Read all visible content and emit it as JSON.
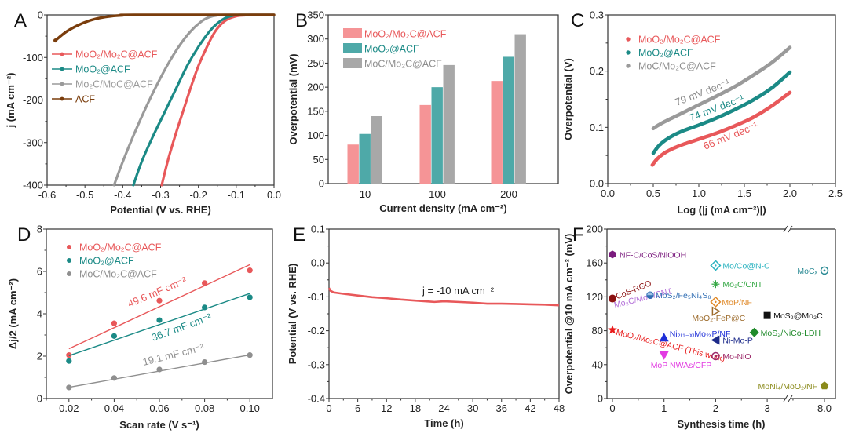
{
  "figure": {
    "panels": [
      "A",
      "B",
      "C",
      "D",
      "E",
      "F"
    ]
  },
  "colors": {
    "red": "#e8585a",
    "teal": "#1b8a86",
    "gray": "#9a9a9a",
    "brown": "#7a3d0c",
    "bar_red": "#f59496",
    "bar_teal": "#4ea9a8",
    "bar_gray": "#a8a8a8"
  },
  "chart_data": [
    {
      "panel": "A",
      "type": "line",
      "title": "",
      "xlabel": "Potential (V vs. RHE)",
      "ylabel": "j (mA cm⁻²)",
      "xlim": [
        -0.6,
        0.0
      ],
      "ylim": [
        -400,
        0
      ],
      "xticks": [
        "-0.6",
        "-0.5",
        "-0.4",
        "-0.3",
        "-0.2",
        "-0.1",
        "0.0"
      ],
      "yticks": [
        "0",
        "-100",
        "-200",
        "-300",
        "-400"
      ],
      "legend_position": "center-left",
      "series": [
        {
          "name": "MoO₂/Mo₂C@ACF",
          "color": "#e8585a",
          "x": [
            -0.297,
            -0.28,
            -0.26,
            -0.24,
            -0.22,
            -0.2,
            -0.18,
            -0.16,
            -0.14,
            -0.12,
            -0.1,
            -0.08,
            -0.06,
            0.0
          ],
          "y": [
            -400,
            -340,
            -280,
            -225,
            -170,
            -120,
            -80,
            -45,
            -22,
            -9,
            -3,
            -1,
            0,
            0
          ]
        },
        {
          "name": "MoO₂@ACF",
          "color": "#1b8a86",
          "x": [
            -0.372,
            -0.35,
            -0.32,
            -0.29,
            -0.26,
            -0.23,
            -0.2,
            -0.17,
            -0.15,
            -0.13,
            -0.11,
            -0.09,
            0.0
          ],
          "y": [
            -400,
            -345,
            -285,
            -230,
            -175,
            -120,
            -75,
            -38,
            -20,
            -8,
            -2,
            0,
            0
          ]
        },
        {
          "name": "Mo₂C/MoC@ACF",
          "color": "#9a9a9a",
          "x": [
            -0.423,
            -0.4,
            -0.37,
            -0.34,
            -0.31,
            -0.28,
            -0.25,
            -0.22,
            -0.19,
            -0.17,
            -0.15,
            -0.13,
            0.0
          ],
          "y": [
            -400,
            -345,
            -280,
            -220,
            -165,
            -115,
            -72,
            -38,
            -14,
            -5,
            -1,
            0,
            0
          ]
        },
        {
          "name": "ACF",
          "color": "#7a3d0c",
          "x": [
            -0.578,
            -0.55,
            -0.52,
            -0.49,
            -0.46,
            -0.43,
            -0.4,
            -0.37,
            0.0
          ],
          "y": [
            -60,
            -40,
            -25,
            -14,
            -7,
            -3,
            -1,
            0,
            0
          ]
        }
      ]
    },
    {
      "panel": "B",
      "type": "bar",
      "title": "",
      "xlabel": "Current density (mA cm⁻²)",
      "ylabel": "Overpotential (mV)",
      "ylim": [
        0,
        350
      ],
      "yticks": [
        "0",
        "50",
        "100",
        "150",
        "200",
        "250",
        "300",
        "350"
      ],
      "categories": [
        "10",
        "100",
        "200"
      ],
      "legend_position": "top-left",
      "series": [
        {
          "name": "MoO₂/Mo₂C@ACF",
          "color": "#f59496",
          "values": [
            81,
            163,
            213
          ]
        },
        {
          "name": "MoO₂@ACF",
          "color": "#4ea9a8",
          "values": [
            103,
            200,
            263
          ]
        },
        {
          "name": "MoC/Mo₂C@ACF",
          "color": "#a8a8a8",
          "values": [
            140,
            246,
            310
          ]
        }
      ]
    },
    {
      "panel": "C",
      "type": "scatter",
      "title": "",
      "xlabel": "Log (|j (mA cm⁻²)|)",
      "ylabel": "Overpotential (V)",
      "xlim": [
        0.0,
        2.5
      ],
      "ylim": [
        0.0,
        0.3
      ],
      "xticks": [
        "0.0",
        "0.5",
        "1.0",
        "1.5",
        "2.0",
        "2.5"
      ],
      "yticks": [
        "0.0",
        "0.1",
        "0.2",
        "0.3"
      ],
      "legend_position": "top-left",
      "series": [
        {
          "name": "MoO₂/Mo₂C@ACF",
          "color": "#e8585a",
          "x": [
            0.49,
            0.55,
            0.65,
            0.8,
            1.0,
            1.2,
            1.4,
            1.6,
            1.8,
            2.0
          ],
          "y": [
            0.033,
            0.045,
            0.057,
            0.068,
            0.079,
            0.09,
            0.103,
            0.118,
            0.138,
            0.162
          ]
        },
        {
          "name": "MoO₂@ACF",
          "color": "#1b8a86",
          "x": [
            0.5,
            0.56,
            0.65,
            0.8,
            1.0,
            1.2,
            1.4,
            1.6,
            1.8,
            2.0
          ],
          "y": [
            0.054,
            0.067,
            0.079,
            0.092,
            0.104,
            0.117,
            0.132,
            0.149,
            0.17,
            0.198
          ]
        },
        {
          "name": "MoC/Mo₂C@ACF",
          "color": "#9a9a9a",
          "x": [
            0.5,
            0.6,
            0.8,
            1.0,
            1.2,
            1.4,
            1.6,
            1.8,
            2.0
          ],
          "y": [
            0.098,
            0.108,
            0.124,
            0.14,
            0.156,
            0.173,
            0.193,
            0.215,
            0.242
          ]
        }
      ],
      "annotations": [
        {
          "text": "79 mV dec⁻¹",
          "color": "#8a8a8a"
        },
        {
          "text": "74 mV dec⁻¹",
          "color": "#1b8a86"
        },
        {
          "text": "66 mV dec⁻¹",
          "color": "#e8585a"
        }
      ]
    },
    {
      "panel": "D",
      "type": "scatter",
      "title": "",
      "xlabel": "Scan rate (V s⁻¹)",
      "ylabel": "Δj/2 (mA cm⁻²)",
      "xlim": [
        0.01,
        0.11
      ],
      "ylim": [
        0,
        8
      ],
      "xticks": [
        "0.02",
        "0.04",
        "0.06",
        "0.08",
        "0.10"
      ],
      "yticks": [
        "0",
        "2",
        "4",
        "6",
        "8"
      ],
      "legend_position": "top-left",
      "series": [
        {
          "name": "MoO₂/Mo₂C@ACF",
          "color": "#e8585a",
          "x": [
            0.02,
            0.04,
            0.06,
            0.08,
            0.1
          ],
          "y": [
            2.05,
            3.55,
            4.62,
            5.45,
            6.05
          ],
          "fit": [
            2.35,
            6.32
          ]
        },
        {
          "name": "MoO₂@ACF",
          "color": "#1b8a86",
          "x": [
            0.02,
            0.04,
            0.06,
            0.08,
            0.1
          ],
          "y": [
            1.77,
            2.95,
            3.7,
            4.3,
            4.78
          ],
          "fit": [
            2.02,
            4.96
          ]
        },
        {
          "name": "MoC/Mo₂C@ACF",
          "color": "#8f8f8f",
          "x": [
            0.02,
            0.04,
            0.06,
            0.08,
            0.1
          ],
          "y": [
            0.52,
            0.97,
            1.37,
            1.72,
            2.05
          ],
          "fit": [
            0.53,
            2.06
          ]
        }
      ],
      "annotations": [
        {
          "text": "49.6 mF cm⁻²",
          "color": "#e8585a"
        },
        {
          "text": "36.7 mF cm⁻²",
          "color": "#1b8a86"
        },
        {
          "text": "19.1 mF cm⁻²",
          "color": "#8f8f8f"
        }
      ]
    },
    {
      "panel": "E",
      "type": "line",
      "title": "",
      "xlabel": "Time (h)",
      "ylabel": "Potential (V vs. RHE)",
      "xlim": [
        0,
        48
      ],
      "ylim": [
        -0.4,
        0.1
      ],
      "xticks": [
        "0",
        "6",
        "12",
        "18",
        "24",
        "30",
        "36",
        "42",
        "48"
      ],
      "yticks": [
        "0.1",
        "0.0",
        "-0.1",
        "-0.2",
        "-0.3",
        "-0.4"
      ],
      "series": [
        {
          "name": "j = -10 mA cm⁻²",
          "color": "#e8585a",
          "x": [
            0,
            0.3,
            1,
            3,
            6,
            9,
            12,
            15,
            18,
            21,
            22,
            24,
            27,
            30,
            33,
            36,
            39,
            42,
            45,
            48
          ],
          "y": [
            -0.074,
            -0.082,
            -0.087,
            -0.091,
            -0.096,
            -0.101,
            -0.104,
            -0.108,
            -0.111,
            -0.114,
            -0.115,
            -0.113,
            -0.115,
            -0.117,
            -0.12,
            -0.12,
            -0.121,
            -0.122,
            -0.123,
            -0.125
          ]
        }
      ],
      "annotations": [
        {
          "text": "j = -10 mA cm⁻²",
          "color": "#222"
        }
      ]
    },
    {
      "panel": "F",
      "type": "scatter",
      "title": "",
      "xlabel": "Synthesis time (h)",
      "ylabel": "Overpotential @10 mA cm⁻² (mV)",
      "ylim": [
        0,
        200
      ],
      "xticks": [
        "0",
        "1",
        "2",
        "3",
        "8.0"
      ],
      "yticks": [
        "0",
        "40",
        "80",
        "120",
        "160",
        "200"
      ],
      "axis_break": "between 3 and 8.0",
      "points": [
        {
          "label": "NF-C/CoS/NiOOH",
          "x": 0,
          "y": 170,
          "marker": "hexagon",
          "color": "#7b1b7e"
        },
        {
          "label": "CoS-RGO",
          "x": 0,
          "y": 118,
          "marker": "circle",
          "color": "#8b1010"
        },
        {
          "label": "MoO₂/Mo₂C@ACF (This work)",
          "x": 0,
          "y": 81,
          "marker": "star",
          "color": "#e81c1c"
        },
        {
          "label": "Mo₂C/MoC/CNT",
          "x": 0,
          "y": 95,
          "marker": "none",
          "color": "#b36fd8"
        },
        {
          "label": "MoS₂/Fe₅Ni₄S₈",
          "x": 0.73,
          "y": 122,
          "marker": "half-circle",
          "color": "#2f6db3"
        },
        {
          "label": "Ni₂₍₁₋ₓ₎Mo₂ₓP/NF",
          "x": 1,
          "y": 72,
          "marker": "triangle-up",
          "color": "#1e2fd8"
        },
        {
          "label": "MoP NWAs/CFP",
          "x": 1,
          "y": 51,
          "marker": "triangle-down",
          "color": "#e23be2"
        },
        {
          "label": "Mo/Co@N-C",
          "x": 2,
          "y": 157,
          "marker": "diamond-open",
          "color": "#2bb3c0"
        },
        {
          "label": "Mo₂C/CNT",
          "x": 2,
          "y": 135,
          "marker": "asterisk",
          "color": "#35a845"
        },
        {
          "label": "MoP/NF",
          "x": 2,
          "y": 114,
          "marker": "diamond-open",
          "color": "#e08a2a"
        },
        {
          "label": "MoO₂-FeP@C",
          "x": 2,
          "y": 103,
          "marker": "triangle-right-open",
          "color": "#9c6a2a"
        },
        {
          "label": "Ni-Mo-P",
          "x": 2,
          "y": 69,
          "marker": "triangle-left",
          "color": "#1c2a8a"
        },
        {
          "label": "Mo-NiO",
          "x": 2,
          "y": 50,
          "marker": "circle-dot",
          "color": "#9c2a6a"
        },
        {
          "label": "MoS₂@Mo₂C",
          "x": 3,
          "y": 98,
          "marker": "square",
          "color": "#111111"
        },
        {
          "label": "MoS₂/NiCo-LDH",
          "x": 2.75,
          "y": 78,
          "marker": "diamond",
          "color": "#1f8a2a"
        },
        {
          "label": "MoCₓ",
          "x": 8.0,
          "y": 151,
          "marker": "circle-dot",
          "color": "#2a8a94"
        },
        {
          "label": "MoNi₄/MoO₂/NF",
          "x": 8.0,
          "y": 15,
          "marker": "pentagon",
          "color": "#8a8a1a"
        }
      ]
    }
  ]
}
